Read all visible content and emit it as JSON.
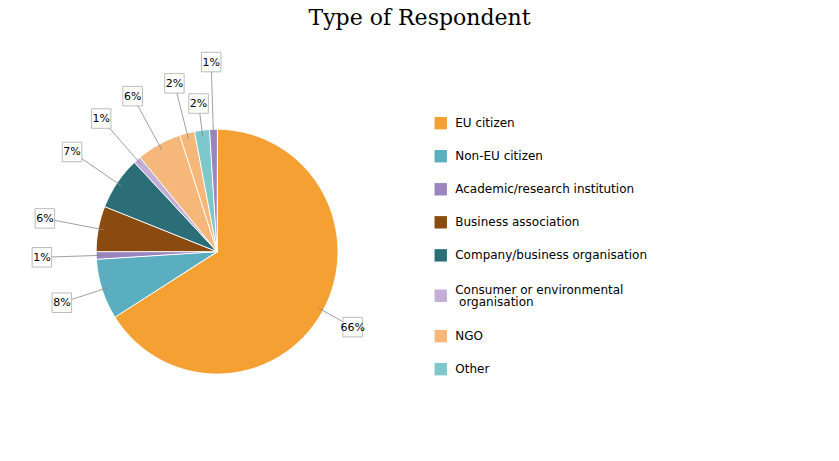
{
  "chart_data": {
    "type": "pie",
    "title": "Type of Respondent",
    "values": [
      66,
      8,
      1,
      6,
      7,
      1,
      6,
      2,
      2,
      1
    ],
    "value_labels": [
      "66%",
      "8%",
      "1%",
      "6%",
      "7%",
      "1%",
      "6%",
      "2%",
      "2%",
      "1%"
    ],
    "colors": [
      "#F5A033",
      "#5BADC0",
      "#9B85BE",
      "#8B4A10",
      "#2B6E78",
      "#C4AED8",
      "#F5B87A",
      "#F5B87A",
      "#7EC8CC",
      "#9B85BE"
    ],
    "data_labels": true,
    "legend": "right",
    "legend_labels": [
      "EU citizen",
      "Non-EU citizen",
      "Academic/research institution",
      "Business association",
      "Company/business organisation",
      "Consumer or environmental\n organisation",
      "NGO",
      "Other"
    ],
    "legend_colors": [
      "#F5A033",
      "#5BADC0",
      "#9B85BE",
      "#8B4A10",
      "#2B6E78",
      "#C4AED8",
      "#F5B87A",
      "#7EC8CC"
    ]
  }
}
